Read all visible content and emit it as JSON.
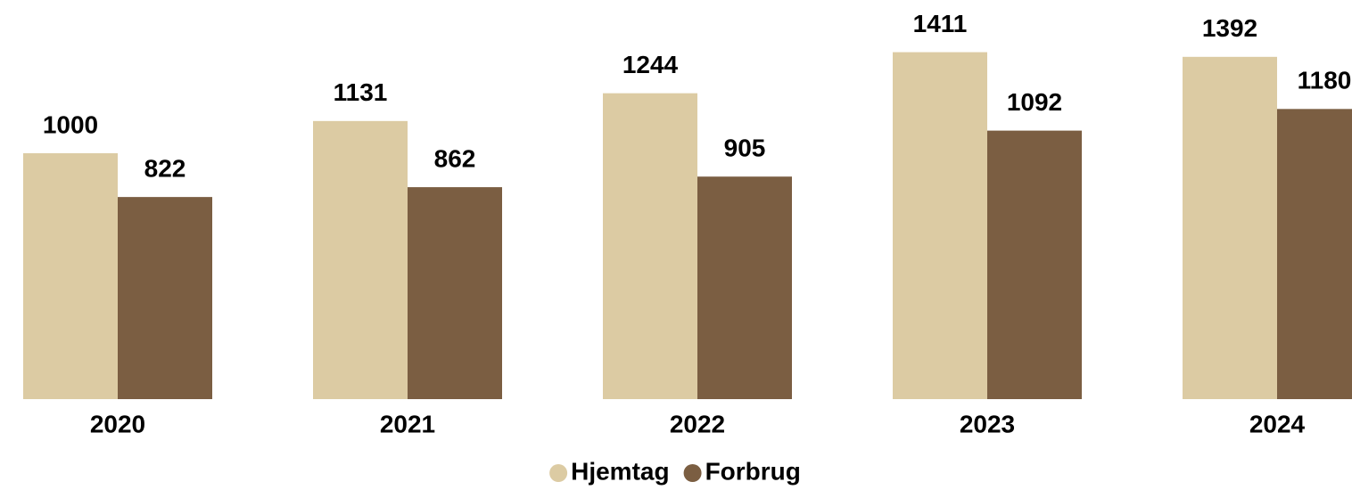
{
  "chart_data": {
    "type": "bar",
    "categories": [
      "2020",
      "2021",
      "2022",
      "2023",
      "2024"
    ],
    "series": [
      {
        "name": "Hjemtag",
        "color": "#dccba3",
        "values": [
          1000,
          1131,
          1244,
          1411,
          1392
        ]
      },
      {
        "name": "Forbrug",
        "color": "#7b5e42",
        "values": [
          822,
          862,
          905,
          1092,
          1180
        ]
      }
    ],
    "ylim": [
      0,
      1600
    ],
    "grid": false,
    "legend": "bottom"
  }
}
